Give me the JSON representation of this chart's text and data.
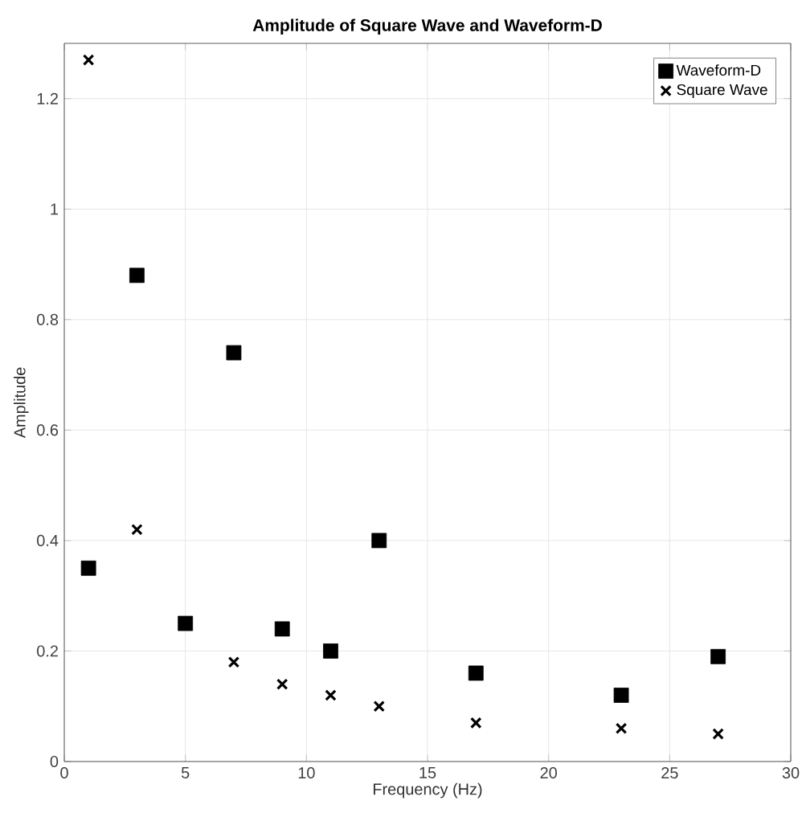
{
  "chart_data": {
    "type": "scatter",
    "title": "Amplitude of Square Wave and Waveform-D",
    "xlabel": "Frequency (Hz)",
    "ylabel": "Amplitude",
    "xlim": [
      0,
      30
    ],
    "ylim": [
      0,
      1.3
    ],
    "xticks": [
      0,
      5,
      10,
      15,
      20,
      25,
      30
    ],
    "yticks": [
      0,
      0.2,
      0.4,
      0.6,
      0.8,
      1,
      1.2
    ],
    "grid": true,
    "legend": "top right",
    "series": [
      {
        "name": "Waveform-D",
        "color": "#000000",
        "marker": "square",
        "x": [
          1,
          3,
          5,
          7,
          9,
          11,
          13,
          17,
          23,
          27
        ],
        "values": [
          0.35,
          0.88,
          0.25,
          0.74,
          0.24,
          0.2,
          0.4,
          0.16,
          0.12,
          0.19
        ]
      },
      {
        "name": "Square Wave",
        "color": "#000000",
        "marker": "cross",
        "x": [
          1,
          3,
          5,
          7,
          9,
          11,
          13,
          17,
          23,
          27
        ],
        "values": [
          1.27,
          0.42,
          null,
          0.18,
          0.14,
          0.12,
          0.1,
          0.07,
          0.06,
          0.05
        ]
      }
    ]
  }
}
